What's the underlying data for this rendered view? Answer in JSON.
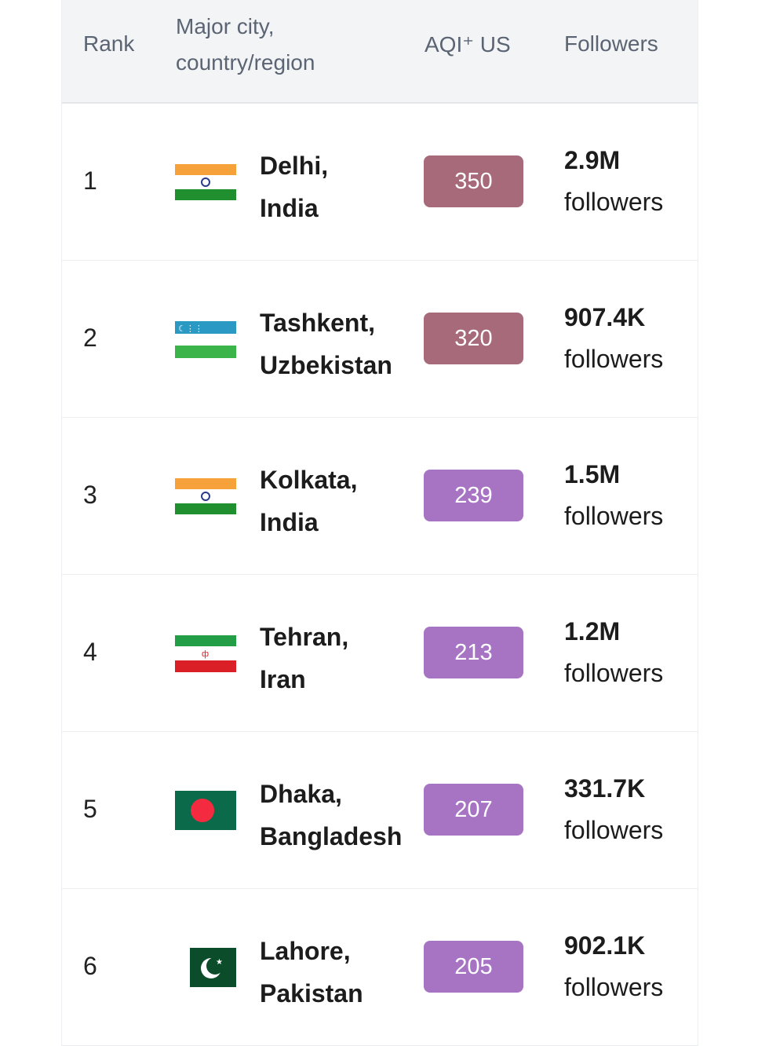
{
  "header": {
    "rank": "Rank",
    "city_line1": "Major city,",
    "city_line2": "country/region",
    "aqi": "AQI⁺ US",
    "followers": "Followers"
  },
  "colors": {
    "very_unhealthy": "#a66a7a",
    "unhealthy": "#a774c4"
  },
  "rows": [
    {
      "rank": "1",
      "city": "Delhi,",
      "country": "India",
      "flag": "india-flag",
      "aqi": "350",
      "level": "very_unhealthy",
      "followers": "2.9M",
      "followers_label": "followers"
    },
    {
      "rank": "2",
      "city": "Tashkent,",
      "country": "Uzbekistan",
      "flag": "uzbekistan-flag",
      "aqi": "320",
      "level": "very_unhealthy",
      "followers": "907.4K",
      "followers_label": "followers"
    },
    {
      "rank": "3",
      "city": "Kolkata,",
      "country": "India",
      "flag": "india-flag",
      "aqi": "239",
      "level": "unhealthy",
      "followers": "1.5M",
      "followers_label": "followers"
    },
    {
      "rank": "4",
      "city": "Tehran,",
      "country": "Iran",
      "flag": "iran-flag",
      "aqi": "213",
      "level": "unhealthy",
      "followers": "1.2M",
      "followers_label": "followers"
    },
    {
      "rank": "5",
      "city": "Dhaka,",
      "country": "Bangladesh",
      "flag": "bangladesh-flag",
      "aqi": "207",
      "level": "unhealthy",
      "followers": "331.7K",
      "followers_label": "followers"
    },
    {
      "rank": "6",
      "city": "Lahore,",
      "country": "Pakistan",
      "flag": "pakistan-flag",
      "aqi": "205",
      "level": "unhealthy",
      "followers": "902.1K",
      "followers_label": "followers"
    }
  ]
}
